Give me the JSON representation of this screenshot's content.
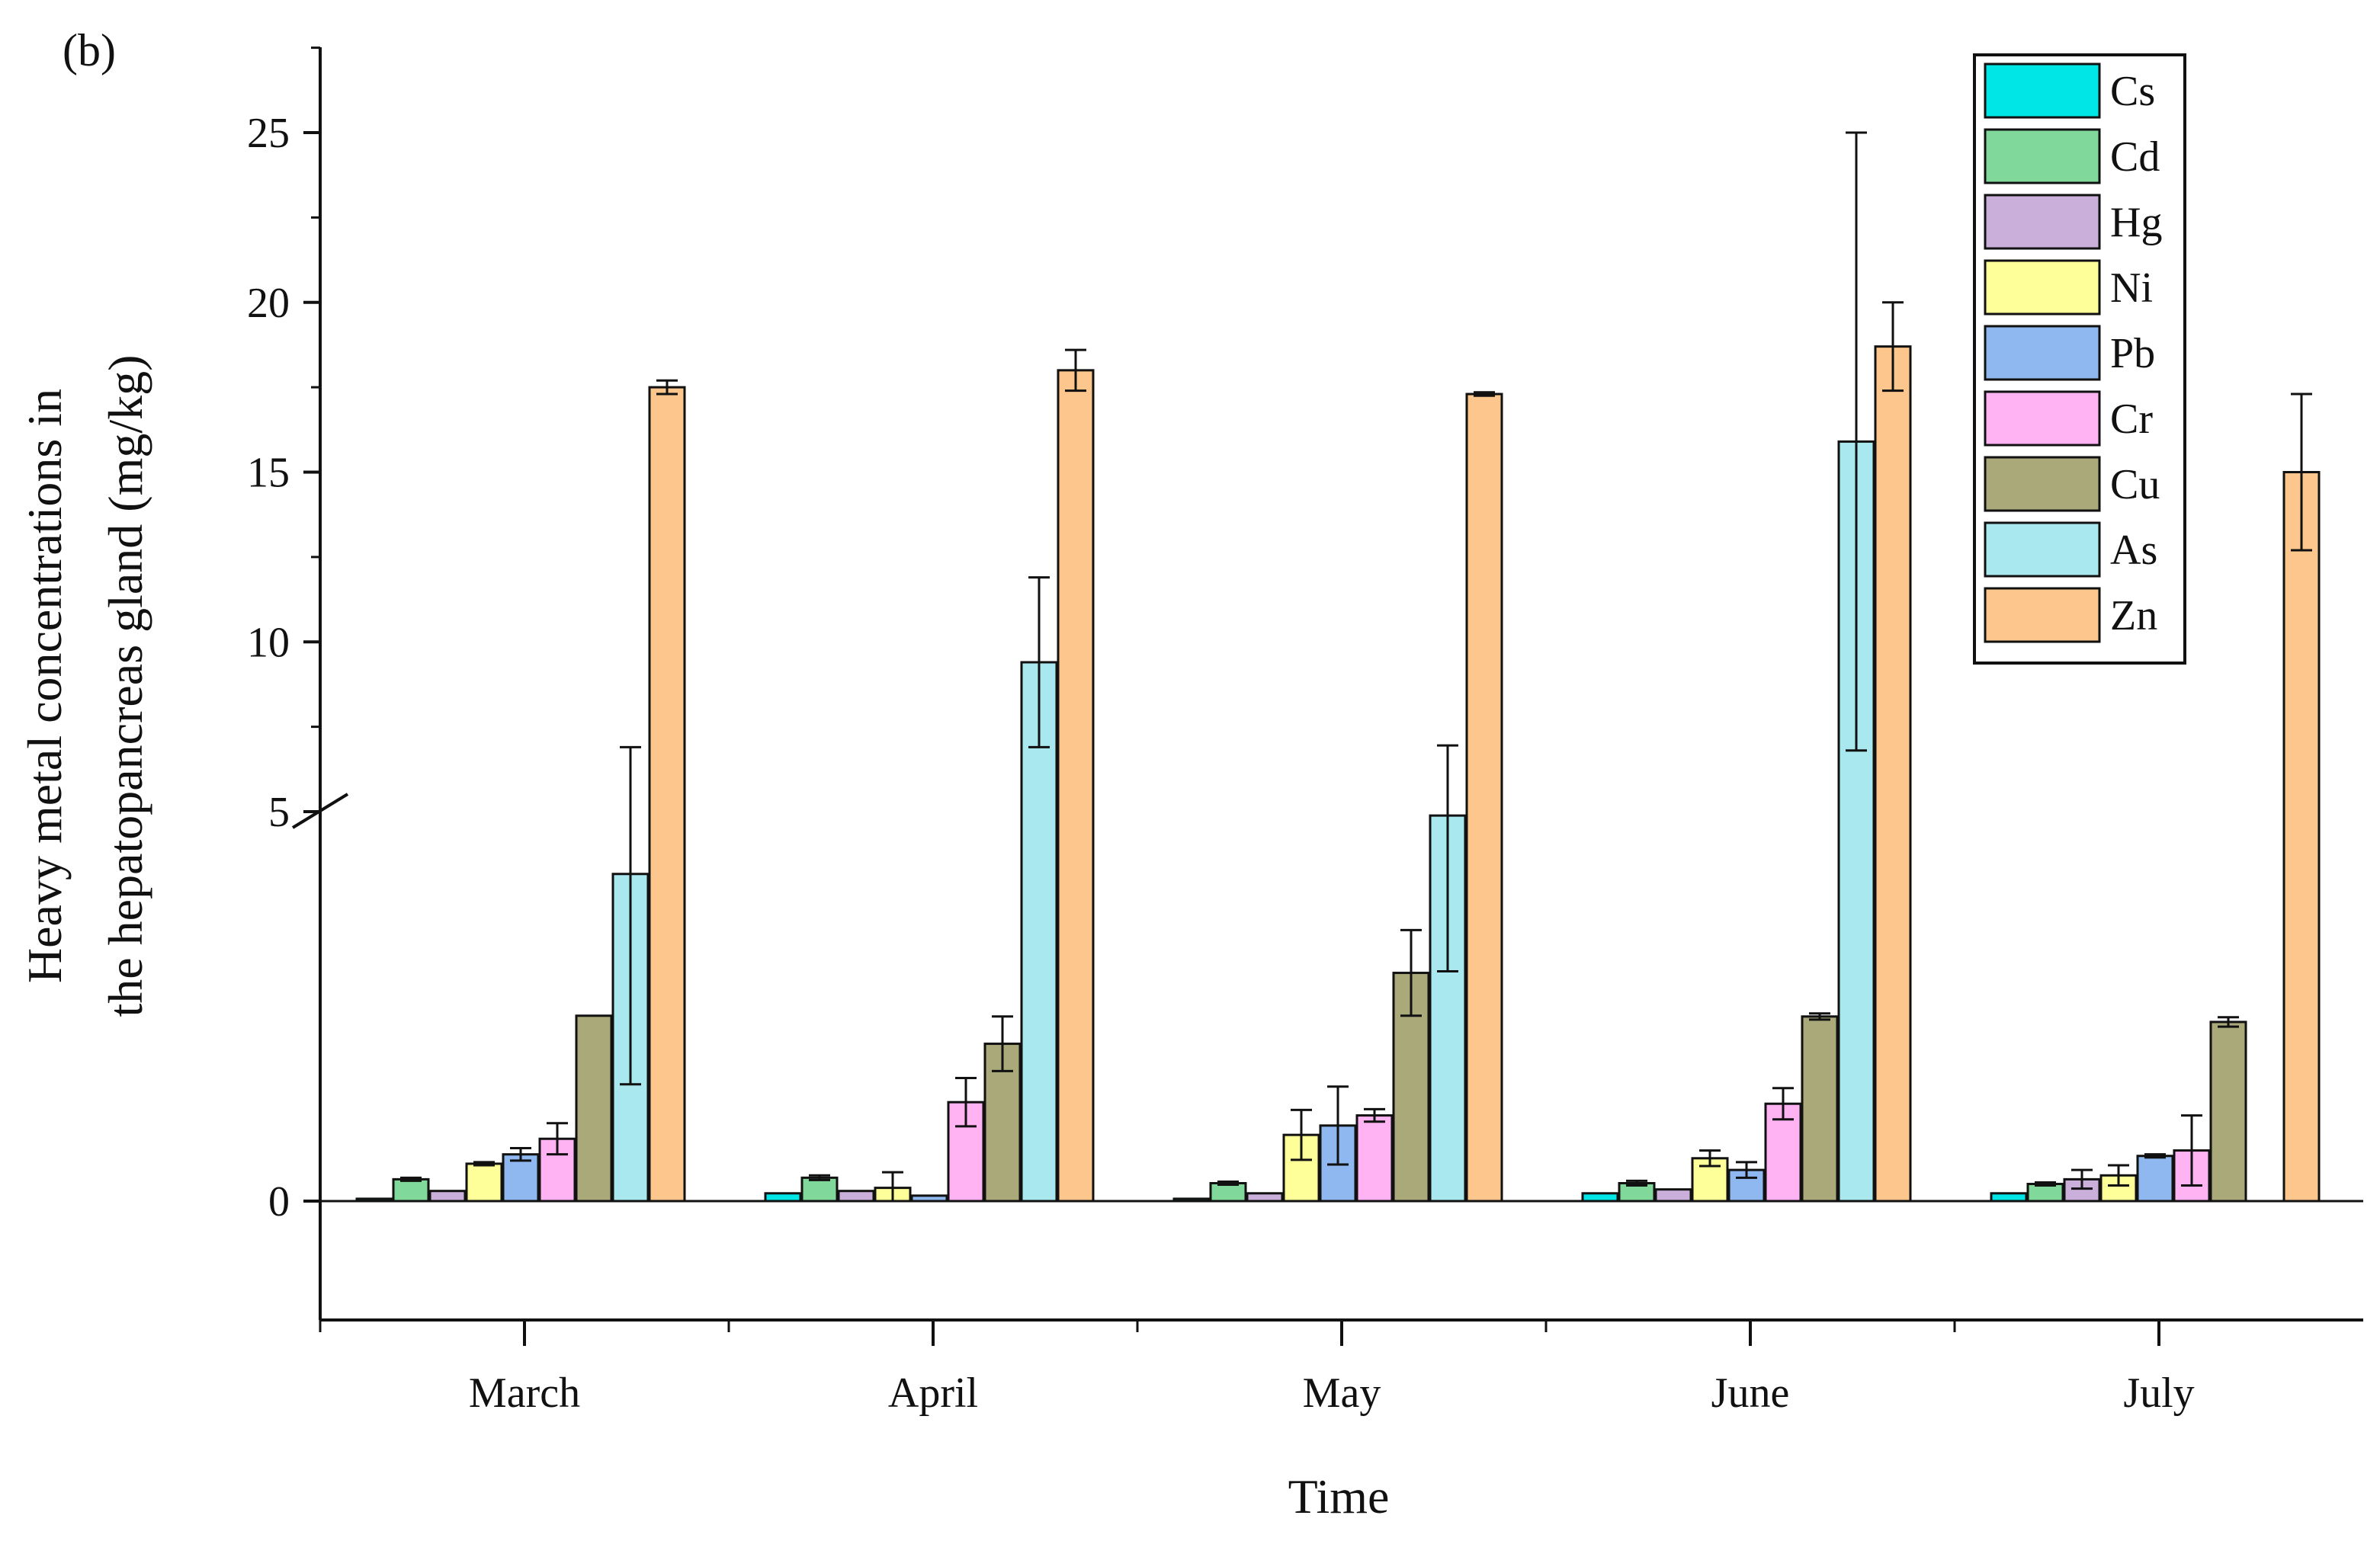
{
  "chart_data": {
    "type": "bar",
    "panel_label": "(b)",
    "xlabel": "Time",
    "ylabel_line1": "Heavy metal concentrations in",
    "ylabel_line2": "the hepatopancreas gland (mg/kg)",
    "categories": [
      "March",
      "April",
      "May",
      "June",
      "July"
    ],
    "y_axis": {
      "break": true,
      "lower_segment_range": [
        0,
        5
      ],
      "upper_segment_range": [
        5,
        25
      ],
      "ticks": [
        0,
        5,
        10,
        15,
        20,
        25
      ],
      "tick_labels": [
        "0",
        "5",
        "10",
        "15",
        "20",
        "25"
      ]
    },
    "series": [
      {
        "name": "Cs",
        "color": "#00e5e5",
        "values": [
          0.03,
          0.1,
          0.03,
          0.1,
          0.1
        ],
        "errors": [
          0.0,
          0.0,
          0.0,
          0.0,
          0.0
        ]
      },
      {
        "name": "Cd",
        "color": "#80d99a",
        "values": [
          0.28,
          0.3,
          0.23,
          0.23,
          0.22
        ],
        "errors": [
          0.02,
          0.03,
          0.02,
          0.03,
          0.02
        ]
      },
      {
        "name": "Hg",
        "color": "#c9afd9",
        "values": [
          0.13,
          0.13,
          0.1,
          0.15,
          0.28
        ],
        "errors": [
          0.0,
          0.0,
          0.0,
          0.0,
          0.12
        ]
      },
      {
        "name": "Ni",
        "color": "#ffff99",
        "values": [
          0.48,
          0.17,
          0.85,
          0.55,
          0.33
        ],
        "errors": [
          0.02,
          0.2,
          0.32,
          0.1,
          0.13
        ]
      },
      {
        "name": "Pb",
        "color": "#8fb8f0",
        "values": [
          0.6,
          0.07,
          0.97,
          0.4,
          0.58
        ],
        "errors": [
          0.08,
          0.0,
          0.5,
          0.1,
          0.02
        ]
      },
      {
        "name": "Cr",
        "color": "#ffb3f2",
        "values": [
          0.8,
          1.27,
          1.1,
          1.25,
          0.65
        ],
        "errors": [
          0.2,
          0.31,
          0.08,
          0.2,
          0.45
        ]
      },
      {
        "name": "Cu",
        "color": "#a9a97a",
        "values": [
          2.38,
          2.02,
          2.93,
          2.37,
          2.3
        ],
        "errors": [
          0.0,
          0.35,
          0.55,
          0.04,
          0.06
        ]
      },
      {
        "name": "As",
        "color": "#a8e8ee",
        "values": [
          4.2,
          9.4,
          4.95,
          15.9,
          null
        ],
        "errors": [
          2.7,
          2.5,
          2.0,
          9.1,
          null
        ]
      },
      {
        "name": "Zn",
        "color": "#fcc68c",
        "values": [
          17.5,
          18.0,
          17.3,
          18.7,
          15.0
        ],
        "errors": [
          0.2,
          0.6,
          0.05,
          1.3,
          2.3
        ]
      }
    ]
  }
}
